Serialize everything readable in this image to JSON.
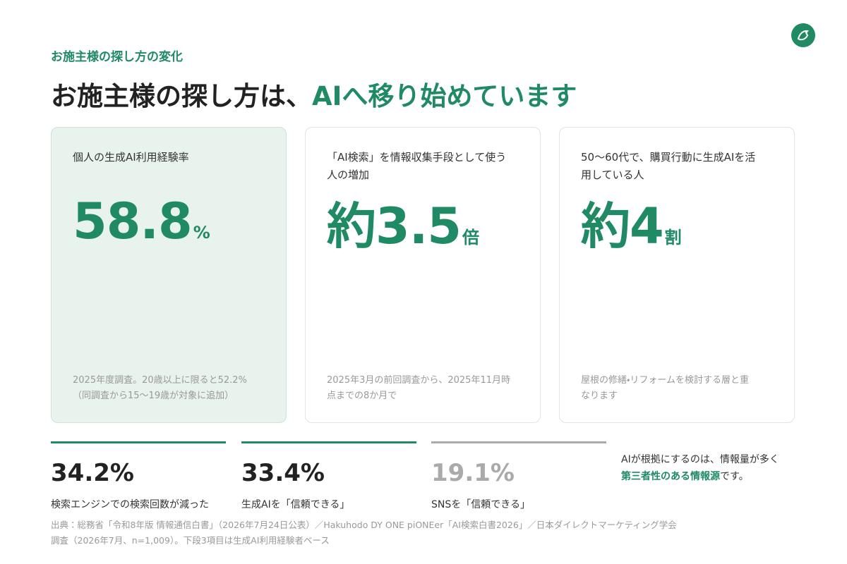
{
  "header": {
    "eyebrow": "お施主様の探し方の変化",
    "title": "お施主様の探し方は、",
    "title_highlight": "AIへ移り始めています"
  },
  "cards": [
    {
      "label_lines": [
        "個人の生成AI利用経験率"
      ],
      "value": "58.8",
      "unit": "%",
      "note_lines": [
        "2025年度調査。20歳以上に限ると52.2%",
        "（同調査から15〜19歳が対象に追加）"
      ]
    },
    {
      "label_lines": [
        "「AI検索」を情報収集手段として使う",
        "人の増加"
      ],
      "prefix": "約",
      "value": "3.5",
      "unit": "倍",
      "note_lines": [
        "2025年3月の前回調査から、2025年11月時",
        "点までの8か月で"
      ]
    },
    {
      "label_lines": [
        "50〜60代で、購買行動に生成AIを活",
        "用している人"
      ],
      "prefix": "約",
      "value": "4",
      "unit": "割",
      "note_lines": [
        "屋根の修繕・リフォームを検討する層と重",
        "なります"
      ]
    }
  ],
  "stats": [
    {
      "value": "34.2%",
      "label": "検索エンジンでの検索回数が減った"
    },
    {
      "value": "33.4%",
      "label": "生成AIを「信頼できる」"
    },
    {
      "value": "19.1%",
      "label": "SNSを「信頼できる」"
    }
  ],
  "side_note": {
    "line1": "AIが根拠にするのは、情報量が多く",
    "emphasis": "第三者性のある情報源",
    "suffix": "です。"
  },
  "source_lines": [
    "出典：総務省「令和8年版 情報通信白書」（2026年7月24日公表）／Hakuhodo DY ONE piONEer「AI検索白書2026」／日本ダイレクトマーケティング学会",
    "調査（2026年7月、n=1,009）。下段3項目は生成AI利用経験者ベース"
  ]
}
